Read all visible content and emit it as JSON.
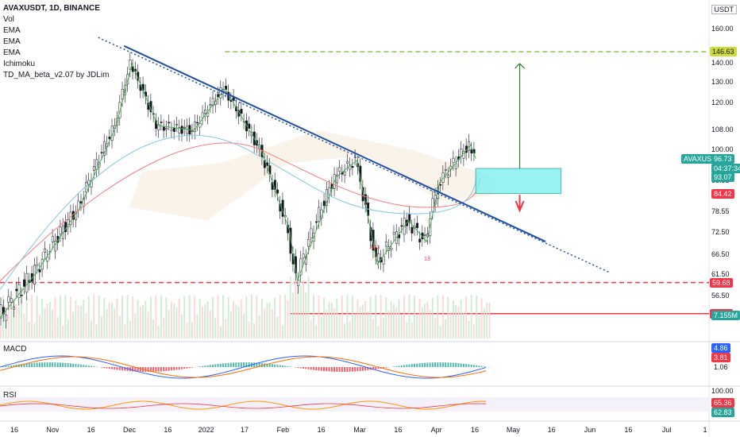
{
  "legend": {
    "title": "AVAXUSDT, 1D, BINANCE",
    "indicators": [
      "Vol",
      "EMA",
      "EMA",
      "EMA",
      "Ichimoku",
      "TD_MA_beta_v2.07 by JDLim"
    ]
  },
  "currency": "USDT",
  "panes": {
    "macd_label": "MACD",
    "rsi_label": "RSI"
  },
  "chart_data": [
    {
      "type": "candlestick",
      "name": "price",
      "y_scale": "log",
      "y_ticks": [
        "160.00",
        "140.00",
        "130.00",
        "120.00",
        "108.00",
        "100.00",
        "88.53",
        "78.55",
        "72.50",
        "66.50",
        "61.50",
        "56.50"
      ],
      "x_ticks": [
        "16",
        "Nov",
        "16",
        "Dec",
        "16",
        "2022",
        "17",
        "Feb",
        "16",
        "Mar",
        "16",
        "Apr",
        "16",
        "May",
        "16",
        "Jun",
        "16",
        "Jul",
        "1"
      ],
      "trend_close_points": [
        {
          "date": "2021-10-01",
          "close": 52
        },
        {
          "date": "2021-10-15",
          "close": 62
        },
        {
          "date": "2021-11-01",
          "close": 80
        },
        {
          "date": "2021-11-15",
          "close": 110
        },
        {
          "date": "2021-11-21",
          "close": 140
        },
        {
          "date": "2021-12-01",
          "close": 110
        },
        {
          "date": "2021-12-15",
          "close": 108
        },
        {
          "date": "2021-12-27",
          "close": 127
        },
        {
          "date": "2022-01-10",
          "close": 100
        },
        {
          "date": "2022-01-21",
          "close": 73
        },
        {
          "date": "2022-01-24",
          "close": 60
        },
        {
          "date": "2022-02-08",
          "close": 90
        },
        {
          "date": "2022-02-16",
          "close": 96
        },
        {
          "date": "2022-02-24",
          "close": 64
        },
        {
          "date": "2022-03-08",
          "close": 76
        },
        {
          "date": "2022-03-15",
          "close": 70
        },
        {
          "date": "2022-03-20",
          "close": 88
        },
        {
          "date": "2022-04-01",
          "close": 102
        },
        {
          "date": "2022-04-03",
          "close": 96.73
        }
      ],
      "horizontal_levels": [
        {
          "value": 146.63,
          "label": "146.63",
          "style": "dashed",
          "color": "#8bc34a"
        },
        {
          "value": 59.68,
          "label": "59.68",
          "style": "dashed",
          "color": "#f23645"
        },
        {
          "value": 52.87,
          "label": "52.87",
          "style": "solid",
          "color": "#f23645"
        }
      ],
      "annotations": [
        "A13",
        "13"
      ],
      "price_badges": [
        {
          "label": "AVAXUSDT",
          "value": "96.73",
          "color": "#26a69a"
        },
        {
          "label": "",
          "value": "04:37:34",
          "color": "#26a69a"
        },
        {
          "label": "",
          "value": "93.07",
          "color": "#26a69a"
        },
        {
          "label": "",
          "value": "84.42",
          "color": "#f23645"
        },
        {
          "label": "",
          "value": "7.155M",
          "color": "#26a69a"
        }
      ]
    },
    {
      "type": "line",
      "name": "MACD",
      "y_ticks": [],
      "badges": [
        {
          "value": "4.86",
          "color": "#2962ff"
        },
        {
          "value": "3.81",
          "color": "#f23645"
        },
        {
          "value": "1.06",
          "color": "#ffffff"
        }
      ]
    },
    {
      "type": "line",
      "name": "RSI",
      "y_ticks": [
        "100.00"
      ],
      "badges": [
        {
          "value": "65.36",
          "color": "#f23645"
        },
        {
          "value": "62.83",
          "color": "#26a69a"
        }
      ]
    }
  ]
}
